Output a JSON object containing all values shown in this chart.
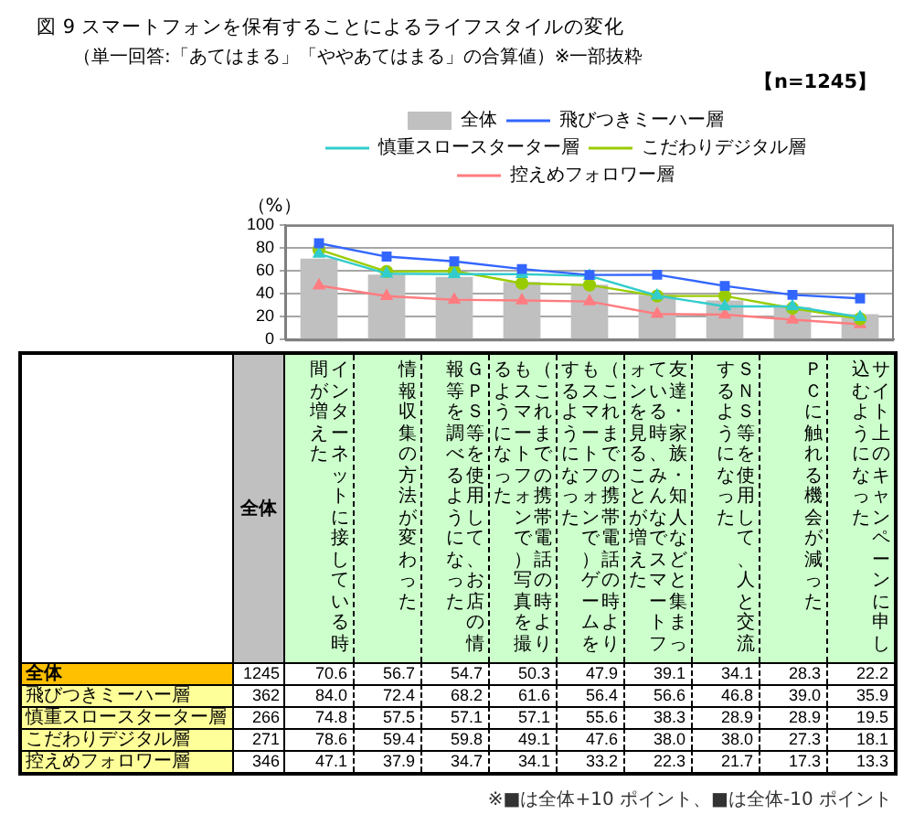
{
  "chart_data": {
    "type": "bar",
    "title": "図 9 スマートフォンを保有することによるライフスタイルの変化",
    "subtitle": "（単一回答:「あてはまる」「ややあてはまる」の合算値）※一部抜粋",
    "ylabel": "（%）",
    "categories": [
      "インターネットに接している時間が増えた",
      "情報収集の方法が変わった",
      "ＧＰＳ等を使用して、お店の情報等を調べるようになった",
      "（これまでの携帯電話の時よりもスマートフォンで）写真を撮るようになった",
      "（これまでの携帯電話の時よりもスマートフォンで）ゲームをするようになった",
      "友達・家族・知人などと集まっている時、みんなでスマートフォンを見ることが増えた",
      "ＳＮＳ等を使用して、人と交流するようになった",
      "ＰＣに触れる機会が減った",
      "サイト上のキャンペーンに申し込むようになった"
    ],
    "series": [
      {
        "name": "全体",
        "type": "bar",
        "color": "#c0c0c0",
        "values": [
          70.6,
          56.7,
          54.7,
          50.3,
          47.9,
          39.1,
          34.1,
          28.3,
          22.2
        ],
        "value_labels": [
          "70.6",
          "56.7",
          "54.7",
          "50.3",
          "47.9",
          "39.1",
          "34.1",
          "28.3",
          "22.2"
        ]
      },
      {
        "name": "飛びつきミーハー層",
        "type": "line",
        "color": "#3366ff",
        "marker": "square",
        "values": [
          84.0,
          72.4,
          68.2,
          61.6,
          56.4,
          56.6,
          46.8,
          39.0,
          35.9
        ],
        "value_labels": [
          "84.0",
          "72.4",
          "68.2",
          "61.6",
          "56.4",
          "56.6",
          "46.8",
          "39.0",
          "35.9"
        ]
      },
      {
        "name": "慎重スロースターター層",
        "type": "line",
        "color": "#33cccc",
        "marker": "triangle",
        "values": [
          74.8,
          57.5,
          57.1,
          57.1,
          55.6,
          38.3,
          28.9,
          28.9,
          19.5
        ],
        "value_labels": [
          "74.8",
          "57.5",
          "57.1",
          "57.1",
          "55.6",
          "38.3",
          "28.9",
          "28.9",
          "19.5"
        ]
      },
      {
        "name": "こだわりデジタル層",
        "type": "line",
        "color": "#99cc00",
        "marker": "circle",
        "values": [
          78.6,
          59.4,
          59.8,
          49.1,
          47.6,
          38.0,
          38.0,
          27.3,
          18.1
        ],
        "value_labels": [
          "78.6",
          "59.4",
          "59.8",
          "49.1",
          "47.6",
          "38.0",
          "38.0",
          "27.3",
          "18.1"
        ]
      },
      {
        "name": "控えめフォロワー層",
        "type": "line",
        "color": "#ff7c80",
        "marker": "triangle",
        "values": [
          47.1,
          37.9,
          34.7,
          34.1,
          33.2,
          22.3,
          21.7,
          17.3,
          13.3
        ],
        "value_labels": [
          "47.1",
          "37.9",
          "34.7",
          "34.1",
          "33.2",
          "22.3",
          "21.7",
          "17.3",
          "13.3"
        ]
      }
    ],
    "ylim": [
      0,
      100
    ],
    "yticks": [
      0,
      20,
      40,
      60,
      80,
      100
    ],
    "grid": "y",
    "legend": "top",
    "annotations": [
      "【n=1245】",
      "全体",
      "1245",
      "362",
      "266",
      "271",
      "346",
      "※■は全体+10 ポイント、■は全体-10 ポイント"
    ]
  }
}
